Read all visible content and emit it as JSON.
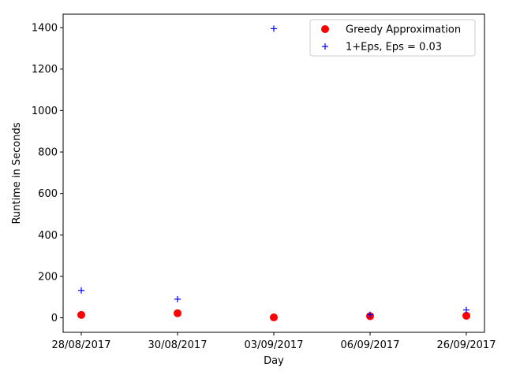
{
  "chart_data": {
    "type": "scatter",
    "categories": [
      "28/08/2017",
      "30/08/2017",
      "03/09/2017",
      "06/09/2017",
      "26/09/2017"
    ],
    "series": [
      {
        "name": "Greedy Approximation",
        "marker": "circle",
        "color": "#ff0000",
        "values": [
          14,
          22,
          2,
          8,
          10
        ]
      },
      {
        "name": "1+Eps, Eps = 0.03",
        "marker": "plus",
        "color": "#0000ff",
        "values": [
          132,
          90,
          1395,
          15,
          38
        ]
      }
    ],
    "xlabel": "Day",
    "ylabel": "Runtime in Seconds",
    "ylim": [
      -70,
      1465
    ],
    "yticks": [
      0,
      200,
      400,
      600,
      800,
      1000,
      1200,
      1400
    ],
    "grid": false,
    "legend": "top-right"
  }
}
